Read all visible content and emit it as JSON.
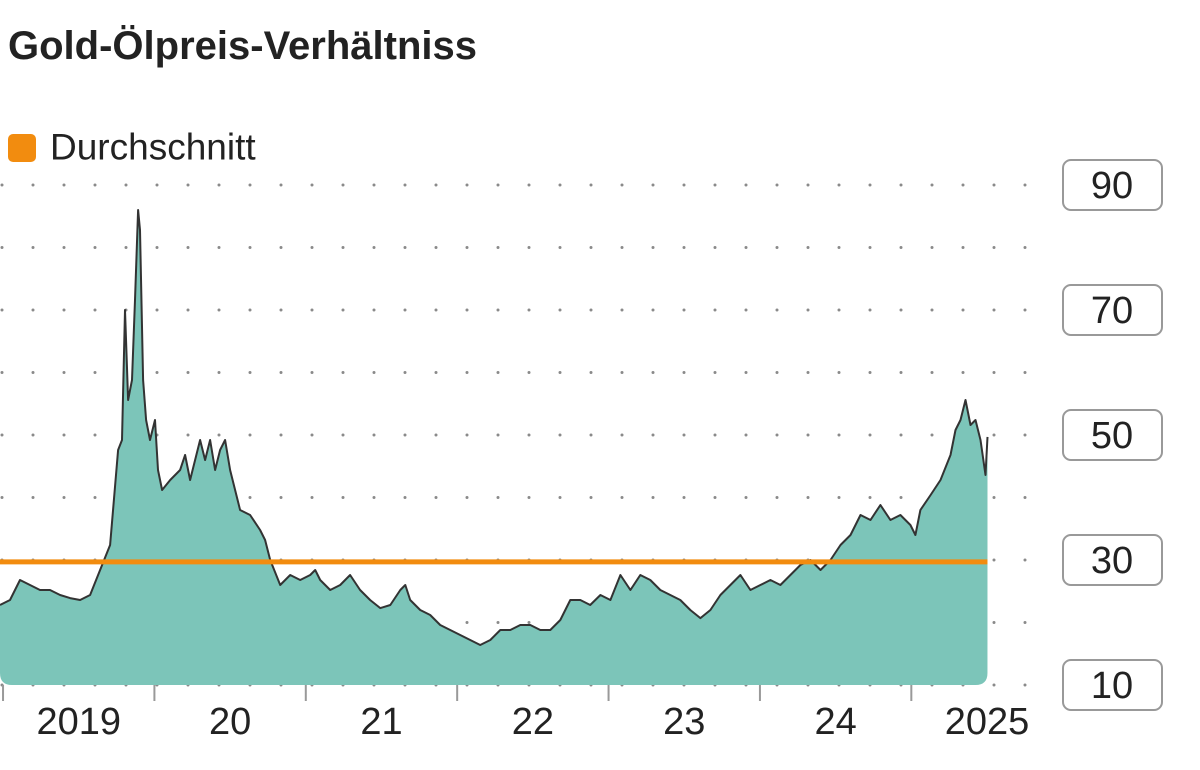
{
  "chart_data": {
    "type": "area",
    "title": "Gold-Ölpreis-Verhältniss",
    "x": [
      2018.98,
      2019.046,
      2019.112,
      2019.178,
      2019.244,
      2019.31,
      2019.377,
      2019.443,
      2019.509,
      2019.575,
      2019.641,
      2019.707,
      2019.76,
      2019.786,
      2019.806,
      2019.826,
      2019.852,
      2019.872,
      2019.892,
      2019.905,
      2019.925,
      2019.945,
      2019.971,
      2020.004,
      2020.024,
      2020.051,
      2020.104,
      2020.17,
      2020.203,
      2020.236,
      2020.302,
      2020.335,
      2020.368,
      2020.401,
      2020.434,
      2020.467,
      2020.5,
      2020.533,
      2020.566,
      2020.632,
      2020.698,
      2020.731,
      2020.765,
      2020.831,
      2020.897,
      2020.963,
      2021.029,
      2021.062,
      2021.095,
      2021.161,
      2021.227,
      2021.293,
      2021.359,
      2021.425,
      2021.492,
      2021.558,
      2021.624,
      2021.657,
      2021.69,
      2021.756,
      2021.822,
      2021.888,
      2021.954,
      2022.02,
      2022.086,
      2022.152,
      2022.219,
      2022.285,
      2022.351,
      2022.417,
      2022.483,
      2022.549,
      2022.615,
      2022.681,
      2022.747,
      2022.813,
      2022.879,
      2022.946,
      2023.012,
      2023.078,
      2023.144,
      2023.21,
      2023.276,
      2023.342,
      2023.408,
      2023.474,
      2023.54,
      2023.607,
      2023.673,
      2023.739,
      2023.805,
      2023.871,
      2023.937,
      2024.003,
      2024.069,
      2024.135,
      2024.201,
      2024.267,
      2024.334,
      2024.4,
      2024.466,
      2024.532,
      2024.598,
      2024.664,
      2024.73,
      2024.796,
      2024.862,
      2024.928,
      2024.994,
      2025.027,
      2025.06,
      2025.127,
      2025.193,
      2025.259,
      2025.292,
      2025.325,
      2025.358,
      2025.391,
      2025.424,
      2025.457,
      2025.49,
      2025.503
    ],
    "series": [
      {
        "color": "#7cc5b9",
        "line_color": "#333333",
        "values": [
          22.8,
          23.6,
          26.8,
          26,
          25.2,
          25.2,
          24.4,
          23.9,
          23.6,
          24.4,
          28.4,
          32.4,
          47.6,
          49.2,
          70,
          55.6,
          58.8,
          71.6,
          86,
          82.8,
          58.8,
          52.4,
          49.2,
          52.4,
          44.4,
          41.2,
          42.8,
          44.4,
          46.8,
          42.8,
          49.2,
          46,
          49.2,
          44.4,
          47.6,
          49.2,
          44.4,
          41.2,
          38,
          37.2,
          34.8,
          33.2,
          30,
          26,
          27.6,
          26.8,
          27.6,
          28.4,
          26.8,
          25.2,
          26,
          27.6,
          25.2,
          23.6,
          22.3,
          22.8,
          25.2,
          26,
          23.6,
          22,
          21.2,
          19.6,
          18.8,
          18,
          17.2,
          16.4,
          17.2,
          18.8,
          18.8,
          19.6,
          19.6,
          18.8,
          18.8,
          20.4,
          23.6,
          23.6,
          22.8,
          24.4,
          23.6,
          27.6,
          25.2,
          27.6,
          26.8,
          25.2,
          24.4,
          23.6,
          22,
          20.7,
          22,
          24.4,
          26,
          27.6,
          25.2,
          26,
          26.8,
          26,
          27.6,
          29.2,
          30,
          28.4,
          30,
          32.4,
          34,
          37.2,
          36.4,
          38.8,
          36.4,
          37.2,
          35.6,
          34,
          38,
          40.4,
          42.8,
          46.8,
          50.8,
          52.4,
          55.6,
          51.6,
          52.4,
          49.2,
          43.6,
          49.7
        ]
      }
    ],
    "average": {
      "name": "Durchschnitt",
      "value": 29.7,
      "color": "#f28c0f"
    },
    "xlim": [
      2018.98,
      2025.85
    ],
    "xticks": [
      2019,
      2020,
      2021,
      2022,
      2023,
      2024,
      2025
    ],
    "x_labels": [
      {
        "value": 2019.5,
        "label": "2019"
      },
      {
        "value": 2020.5,
        "label": "20"
      },
      {
        "value": 2021.5,
        "label": "21"
      },
      {
        "value": 2022.5,
        "label": "22"
      },
      {
        "value": 2023.5,
        "label": "23"
      },
      {
        "value": 2024.5,
        "label": "24"
      },
      {
        "value": 2025.5,
        "label": "2025"
      }
    ],
    "ylim": [
      10,
      90
    ],
    "yticks": [
      10,
      30,
      50,
      70,
      90
    ],
    "y_minor_ticks": [
      20,
      40,
      60,
      80
    ],
    "grid": true
  }
}
